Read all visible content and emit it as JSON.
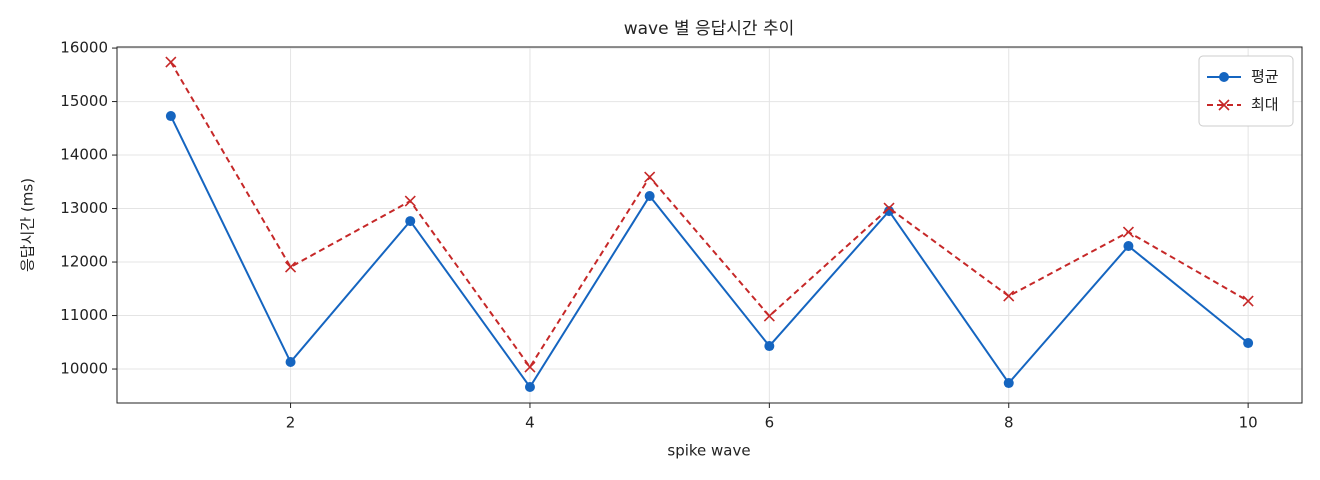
{
  "chart_data": {
    "type": "line",
    "title": "wave 별 응답시간 추이",
    "xlabel": "spike wave",
    "ylabel": "응답시간 (ms)",
    "x": [
      1,
      2,
      3,
      4,
      5,
      6,
      7,
      8,
      9,
      10
    ],
    "series": [
      {
        "name": "평균",
        "color": "#1565c0",
        "marker": "o",
        "dash": false,
        "values": [
          14729,
          10131,
          12766,
          9664,
          13234,
          10430,
          12953,
          9738,
          12299,
          10486
        ]
      },
      {
        "name": "최대",
        "color": "#c62828",
        "marker": "x",
        "dash": true,
        "values": [
          15738,
          11907,
          13140,
          10037,
          13589,
          10991,
          13009,
          11364,
          12561,
          11271
        ]
      }
    ],
    "xlim": [
      0.55,
      10.45
    ],
    "xticks": [
      2,
      4,
      6,
      8,
      10
    ],
    "ylim": [
      9365,
      16020
    ],
    "yticks": [
      10000,
      11000,
      12000,
      13000,
      14000,
      15000,
      16000
    ],
    "grid": true,
    "legend": "upper right"
  }
}
